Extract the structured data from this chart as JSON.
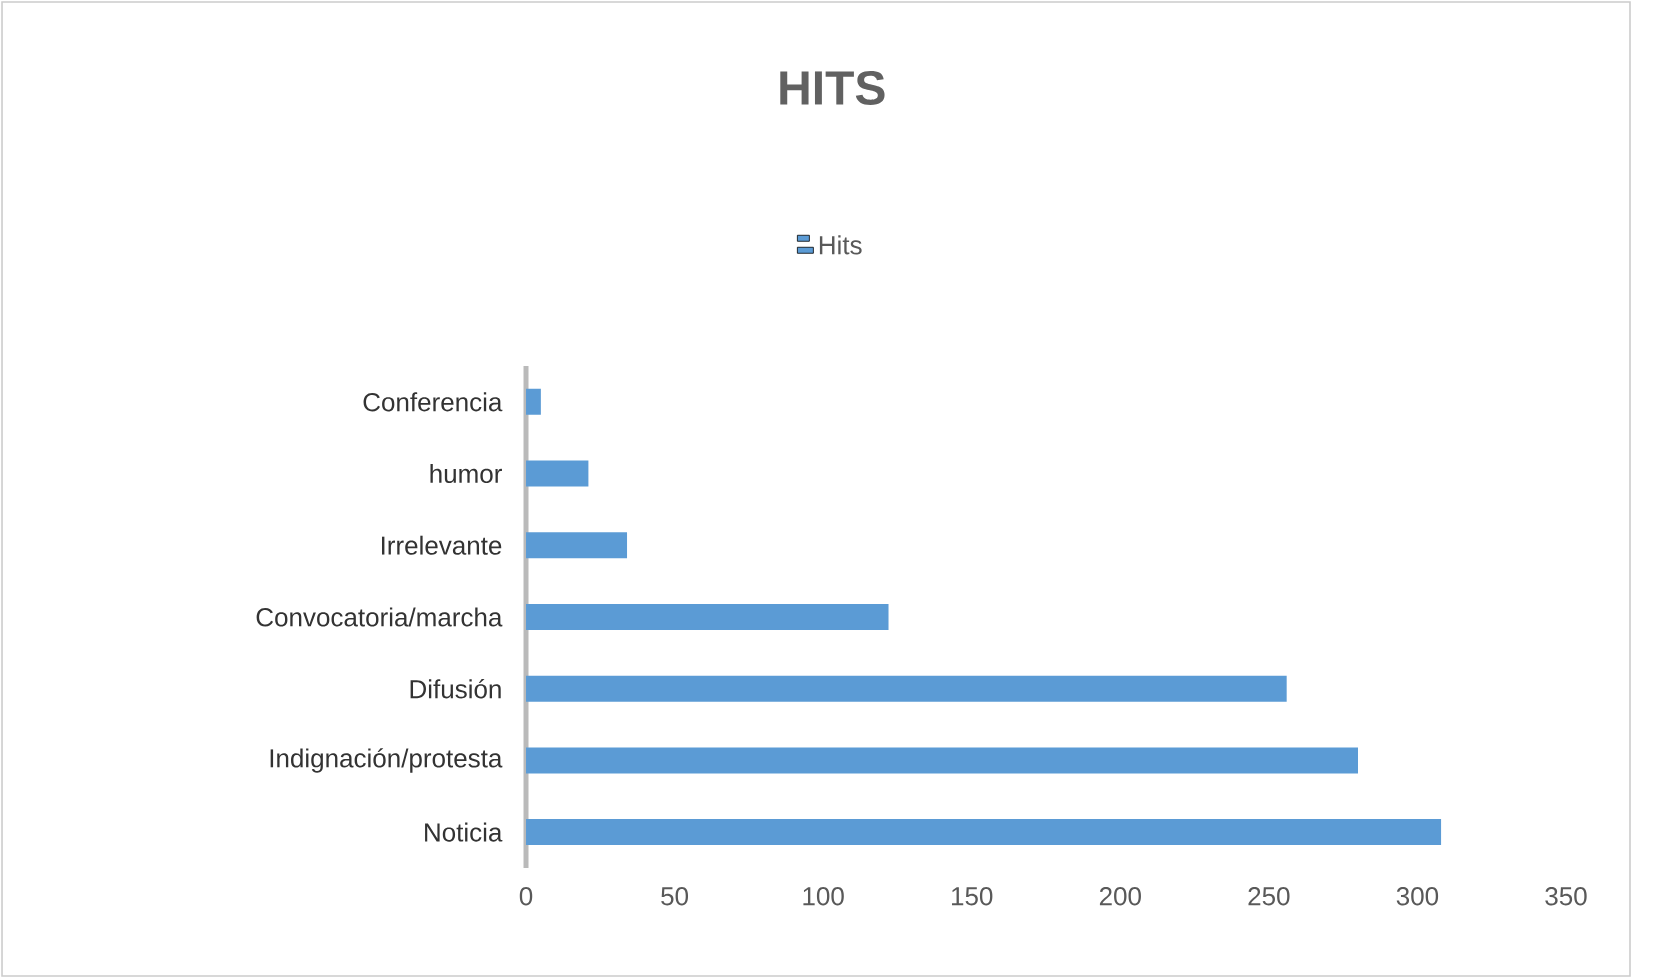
{
  "chart_data": {
    "type": "bar",
    "orientation": "horizontal",
    "title": "HITS",
    "categories": [
      "Conferencia",
      "humor",
      "Irrelevante",
      "Convocatoria/marcha",
      "Difusión",
      "Indignación/protesta",
      "Noticia"
    ],
    "series": [
      {
        "name": "Hits",
        "color": "#5b9bd5",
        "values": [
          5,
          21,
          34,
          122,
          256,
          280,
          308
        ]
      }
    ],
    "xlim": [
      0,
      350
    ],
    "xticks": [
      0,
      50,
      100,
      150,
      200,
      250,
      300,
      350
    ],
    "legend": "top"
  }
}
